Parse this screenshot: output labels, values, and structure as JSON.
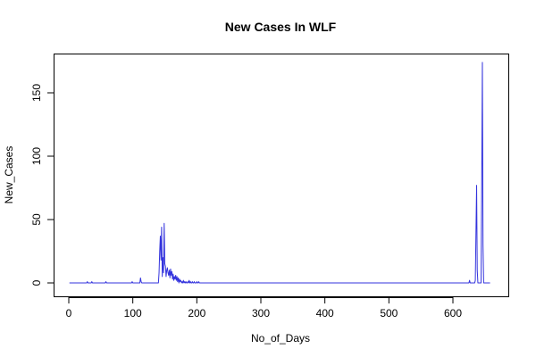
{
  "chart_data": {
    "type": "line",
    "title": "New Cases In WLF",
    "xlabel": "No_of_Days",
    "ylabel": "New_Cases",
    "xlim": [
      0,
      660
    ],
    "ylim": [
      0,
      175
    ],
    "x_ticks": [
      0,
      100,
      200,
      300,
      400,
      500,
      600
    ],
    "y_ticks": [
      0,
      50,
      100,
      150
    ],
    "grid": false,
    "legend": "none",
    "line_color": "#3333dd",
    "series": [
      {
        "x": [
          1,
          28,
          29,
          30,
          35,
          36,
          37,
          57,
          58,
          59,
          98,
          99,
          100,
          111,
          112,
          113,
          114,
          140,
          141,
          142,
          143,
          144,
          145,
          146,
          147,
          148,
          149,
          150,
          151,
          152,
          153,
          154,
          155,
          156,
          157,
          158,
          159,
          160,
          161,
          162,
          163,
          164,
          165,
          166,
          167,
          168,
          169,
          170,
          171,
          172,
          173,
          174,
          175,
          176,
          177,
          178,
          179,
          180,
          181,
          182,
          183,
          184,
          185,
          186,
          187,
          188,
          189,
          190,
          191,
          192,
          193,
          194,
          195,
          196,
          197,
          198,
          199,
          200,
          201,
          202,
          203,
          204,
          205,
          620,
          625,
          626,
          627,
          634,
          635,
          636,
          637,
          638,
          639,
          644,
          645,
          646,
          647,
          648,
          649,
          658
        ],
        "y": [
          0,
          0,
          1,
          0,
          0,
          1,
          0,
          0,
          1,
          0,
          0,
          1,
          0,
          0,
          4,
          1,
          0,
          0,
          8,
          25,
          37,
          18,
          44,
          5,
          20,
          8,
          47,
          15,
          13,
          5,
          10,
          12,
          8,
          6,
          10,
          4,
          11,
          6,
          9,
          3,
          7,
          2,
          5,
          3,
          6,
          2,
          5,
          1,
          4,
          0,
          3,
          1,
          2,
          0,
          1,
          0,
          2,
          0,
          1,
          0,
          1,
          0,
          0,
          1,
          0,
          2,
          0,
          1,
          0,
          0,
          1,
          0,
          0,
          1,
          0,
          0,
          0,
          1,
          0,
          0,
          1,
          0,
          0,
          0,
          0,
          2,
          0,
          0,
          2,
          40,
          77,
          10,
          0,
          0,
          80,
          174,
          30,
          0,
          0,
          0
        ]
      }
    ]
  }
}
